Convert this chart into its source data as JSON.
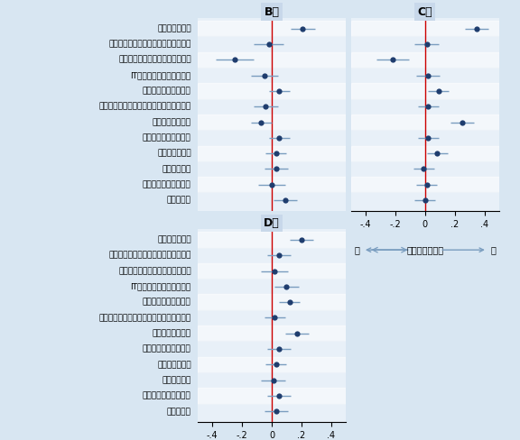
{
  "categories": [
    "集中力の高まり",
    "頻繁なコミュニケーションからの解放",
    "人間関係からくるストレスの緩和",
    "ITツールの活用スキル向上",
    "通勤や準備時間の削減",
    "リラックスした服装や身だしなみでの作業",
    "疲労や体調の改善",
    "バランスの良い食生活",
    "運動不足の解消",
    "飲酒量の減少",
    "睡眠、休息時間の増加",
    "家庭内円満"
  ],
  "B": {
    "coef": [
      0.21,
      -0.02,
      -0.25,
      -0.05,
      0.05,
      -0.04,
      -0.07,
      0.05,
      0.03,
      0.03,
      0.0,
      0.09
    ],
    "ci_lo": [
      0.13,
      -0.12,
      -0.38,
      -0.14,
      -0.02,
      -0.12,
      -0.14,
      -0.02,
      -0.04,
      -0.05,
      -0.09,
      0.01
    ],
    "ci_hi": [
      0.29,
      0.08,
      -0.12,
      0.04,
      0.12,
      0.04,
      0.0,
      0.12,
      0.1,
      0.11,
      0.09,
      0.17
    ]
  },
  "C": {
    "coef": [
      0.35,
      0.01,
      -0.22,
      0.02,
      0.09,
      0.02,
      0.25,
      0.02,
      0.08,
      -0.01,
      0.01,
      0.0
    ],
    "ci_lo": [
      0.27,
      -0.07,
      -0.33,
      -0.06,
      0.02,
      -0.05,
      0.17,
      -0.05,
      0.01,
      -0.08,
      -0.06,
      -0.07
    ],
    "ci_hi": [
      0.43,
      0.09,
      -0.11,
      0.1,
      0.16,
      0.09,
      0.33,
      0.09,
      0.15,
      0.06,
      0.08,
      0.07
    ]
  },
  "D": {
    "coef": [
      0.2,
      0.05,
      0.02,
      0.1,
      0.12,
      0.02,
      0.17,
      0.05,
      0.03,
      0.01,
      0.05,
      0.03
    ],
    "ci_lo": [
      0.12,
      -0.03,
      -0.07,
      0.02,
      0.05,
      -0.05,
      0.09,
      -0.03,
      -0.04,
      -0.07,
      -0.03,
      -0.05
    ],
    "ci_hi": [
      0.28,
      0.13,
      0.11,
      0.18,
      0.19,
      0.09,
      0.25,
      0.13,
      0.1,
      0.09,
      0.13,
      0.11
    ]
  },
  "dot_color": "#1f3d6e",
  "ci_color": "#7a9dbf",
  "vline_color": "#cc0000",
  "panel_bg": "#e8f0f8",
  "title_bg": "#c8d8ea",
  "outer_bg": "#d8e6f2",
  "title_B": "B社",
  "title_C": "C社",
  "title_D": "D社",
  "xlim": [
    -0.5,
    0.5
  ],
  "xticks": [
    -0.4,
    -0.2,
    0,
    0.2,
    0.4
  ],
  "xtick_labels": [
    "-.4",
    "-.2",
    "0",
    ".2",
    ".4"
  ],
  "xlabel_neg": "悪",
  "xlabel_pos": "良",
  "xlabel_mid": "メンタルヘルス",
  "title_fontsize": 9,
  "label_fontsize": 6.5,
  "tick_fontsize": 7
}
